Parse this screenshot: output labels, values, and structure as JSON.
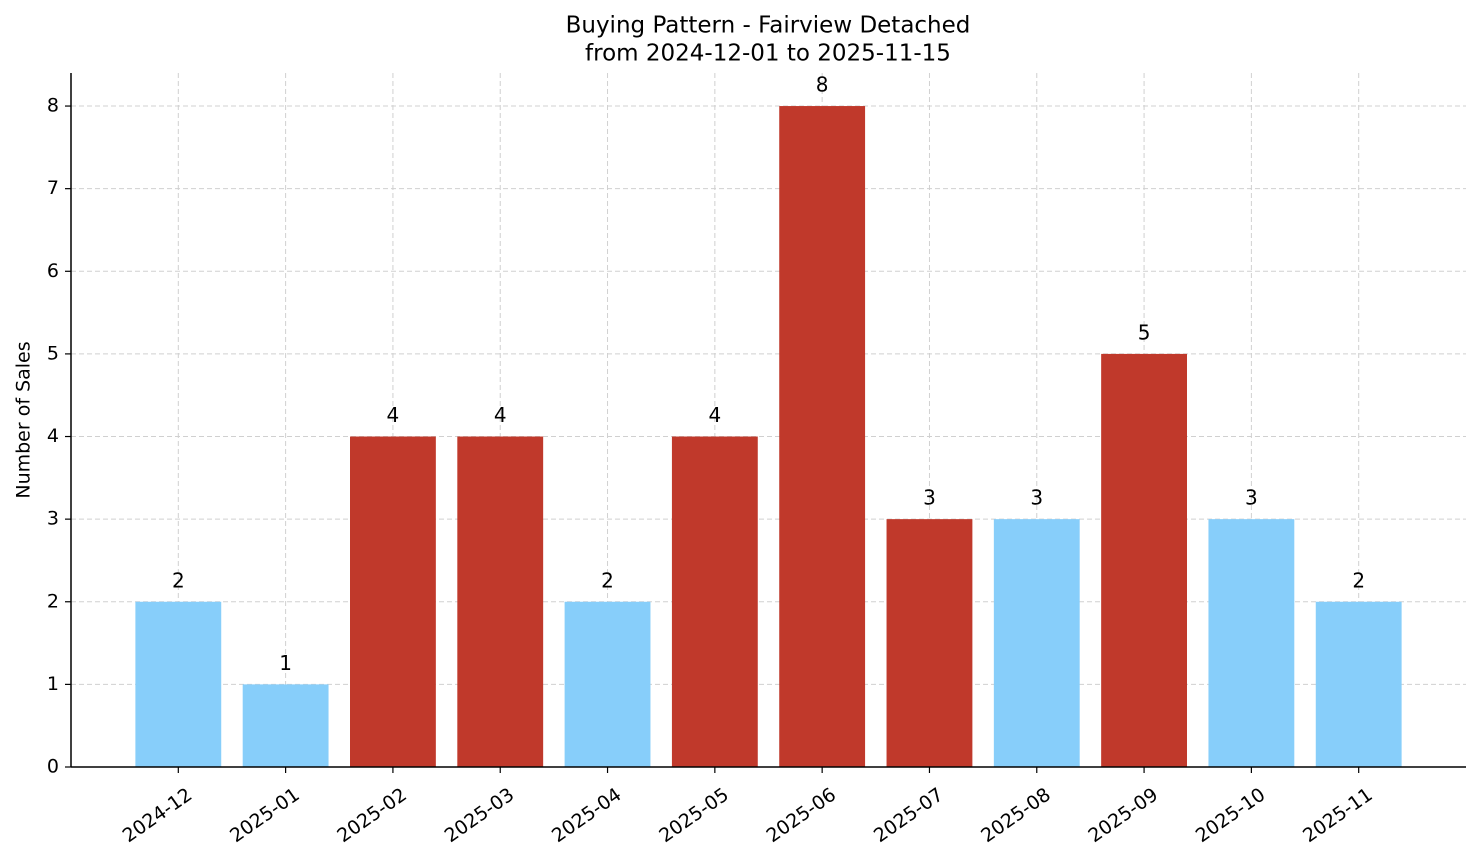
{
  "chart_data": {
    "type": "bar",
    "title": "Buying Pattern - Fairview Detached",
    "subtitle": "from 2024-12-01 to 2025-11-15",
    "y_label": "Number of Sales",
    "categories": [
      "2024-12",
      "2025-01",
      "2025-02",
      "2025-03",
      "2025-04",
      "2025-05",
      "2025-06",
      "2025-07",
      "2025-08",
      "2025-09",
      "2025-10",
      "2025-11"
    ],
    "values": [
      2,
      1,
      4,
      4,
      2,
      4,
      8,
      3,
      3,
      5,
      3,
      2
    ],
    "colors": [
      "#87cefa",
      "#87cefa",
      "#c0392b",
      "#c0392b",
      "#87cefa",
      "#c0392b",
      "#c0392b",
      "#c0392b",
      "#87cefa",
      "#c0392b",
      "#87cefa",
      "#87cefa"
    ],
    "ylim": [
      0,
      8.4
    ],
    "yticks": [
      0,
      1,
      2,
      3,
      4,
      5,
      6,
      7,
      8
    ],
    "grid": true
  }
}
